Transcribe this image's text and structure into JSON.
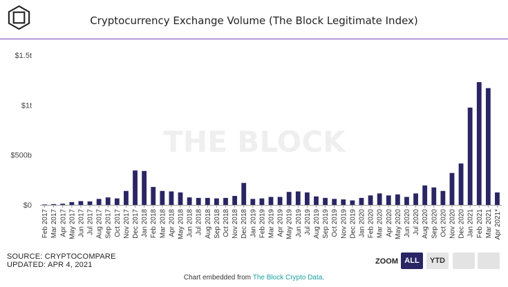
{
  "title": "Cryptocurrency Exchange Volume (The Block Legitimate Index)",
  "watermark": "THE BLOCK",
  "source": {
    "line1": "SOURCE: CRYPTOCOMPARE",
    "line2": "UPDATED: APR 4, 2021"
  },
  "zoom": {
    "label": "ZOOM",
    "buttons": [
      "ALL",
      "YTD"
    ],
    "active": "ALL"
  },
  "footer": {
    "prefix": "Chart embedded from ",
    "link": "The Block Crypto Data",
    "suffix": "."
  },
  "colors": {
    "bar": "#2a2664",
    "accent_rule": "#7b3fbf",
    "link": "#1a9e9e",
    "active_button": "#2a2664"
  },
  "chart_data": {
    "type": "bar",
    "title": "Cryptocurrency Exchange Volume (The Block Legitimate Index)",
    "xlabel": "",
    "ylabel": "",
    "ylim": [
      0,
      1500
    ],
    "y_unit": "billions USD",
    "y_ticks": [
      {
        "value": 0,
        "label": "$0"
      },
      {
        "value": 500,
        "label": "$500b"
      },
      {
        "value": 1000,
        "label": "$1t"
      },
      {
        "value": 1500,
        "label": "$1.5t"
      }
    ],
    "grid": false,
    "legend": "none",
    "categories": [
      "Feb 2017",
      "Mar 2017",
      "Apr 2017",
      "May 2017",
      "Jun 2017",
      "Jul 2017",
      "Aug 2017",
      "Sep 2017",
      "Oct 2017",
      "Nov 2017",
      "Dec 2017",
      "Jan 2018",
      "Feb 2018",
      "Mar 2018",
      "Apr 2018",
      "May 2018",
      "Jun 2018",
      "Jul 2018",
      "Aug 2018",
      "Sep 2018",
      "Oct 2018",
      "Nov 2018",
      "Dec 2018",
      "Jan 2019",
      "Feb 2019",
      "Mar 2019",
      "Apr 2019",
      "May 2019",
      "Jun 2019",
      "Jul 2019",
      "Aug 2019",
      "Sep 2019",
      "Oct 2019",
      "Nov 2019",
      "Dec 2019",
      "Jan 2020",
      "Feb 2020",
      "Mar 2020",
      "Apr 2020",
      "May 2020",
      "Jun 2020",
      "Jul 2020",
      "Aug 2020",
      "Sep 2020",
      "Oct 2020",
      "Nov 2020",
      "Dec 2020",
      "Jan 2021",
      "Feb 2021",
      "Mar 2021",
      "Apr 2021*"
    ],
    "values": [
      4,
      8,
      12,
      28,
      38,
      35,
      60,
      75,
      65,
      140,
      345,
      340,
      180,
      140,
      135,
      125,
      75,
      70,
      70,
      65,
      70,
      90,
      220,
      60,
      65,
      80,
      80,
      130,
      135,
      125,
      85,
      70,
      60,
      55,
      45,
      70,
      95,
      115,
      95,
      105,
      80,
      115,
      195,
      175,
      140,
      320,
      415,
      975,
      1230,
      1170,
      125
    ]
  }
}
